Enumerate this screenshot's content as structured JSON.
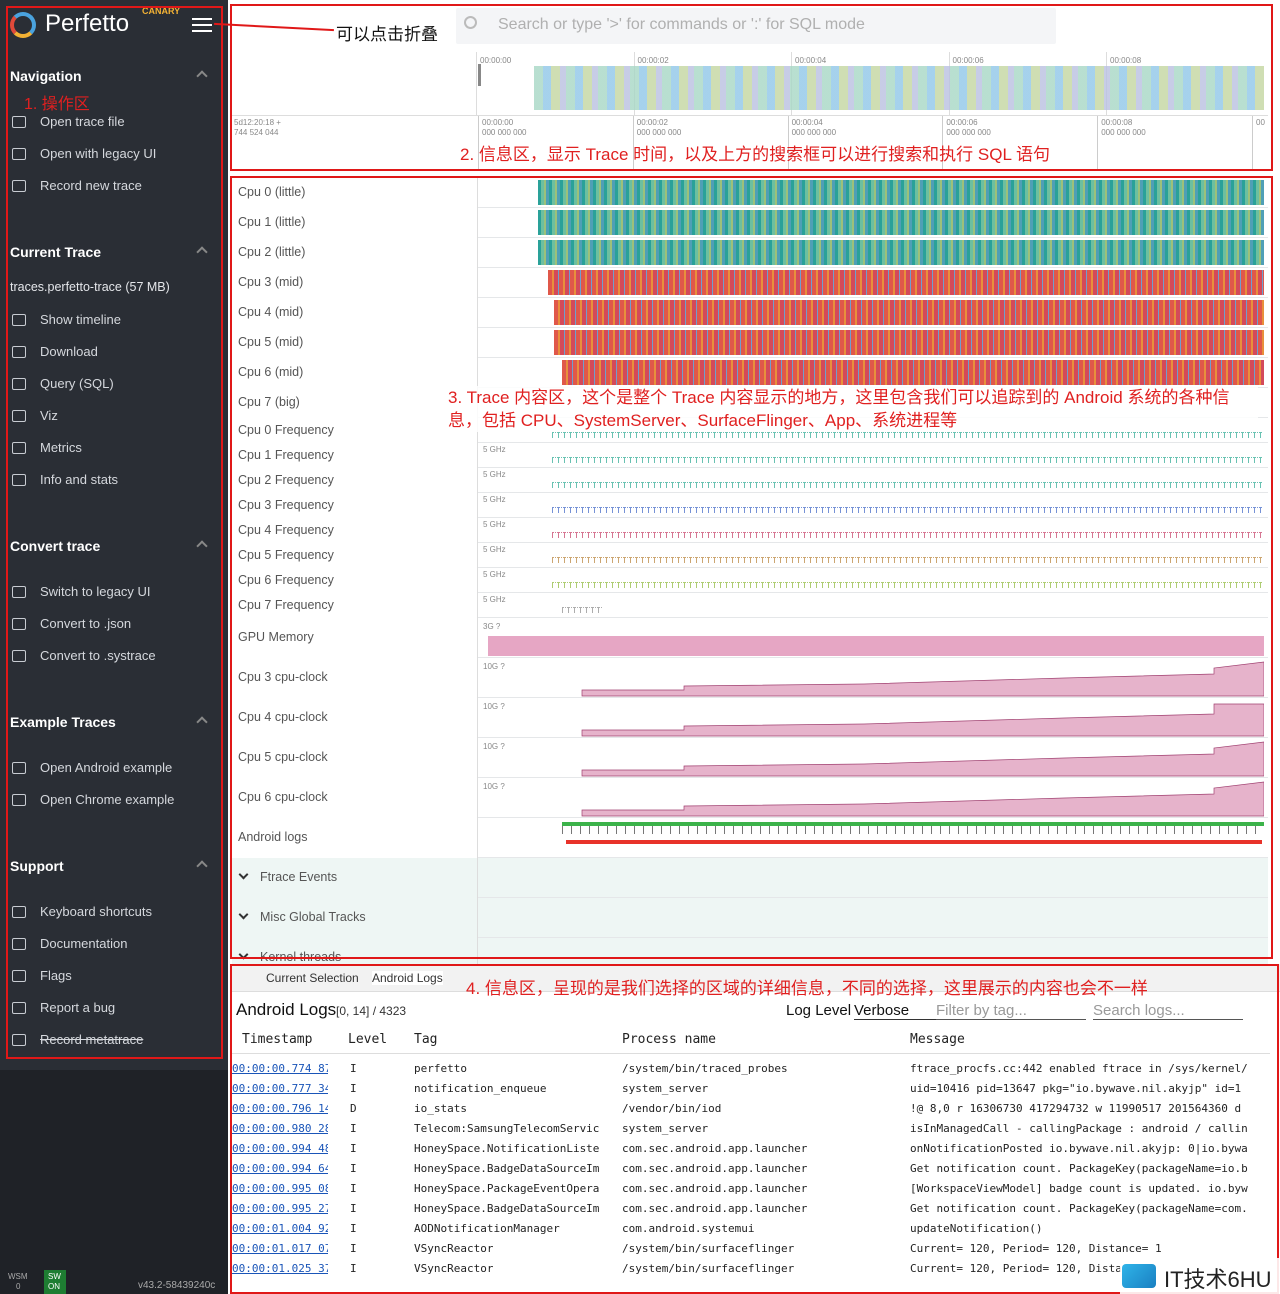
{
  "sidebar": {
    "logo": "Perfetto",
    "badge": "CANARY",
    "annotation": "1. 操作区",
    "sections": [
      {
        "title": "Navigation",
        "items": [
          "Open trace file",
          "Open with legacy UI",
          "Record new trace"
        ]
      },
      {
        "title": "Current Trace",
        "file": "traces.perfetto-trace (57 MB)",
        "items": [
          "Show timeline",
          "Download",
          "Query (SQL)",
          "Viz",
          "Metrics",
          "Info and stats"
        ]
      },
      {
        "title": "Convert trace",
        "items": [
          "Switch to legacy UI",
          "Convert to .json",
          "Convert to .systrace"
        ]
      },
      {
        "title": "Example Traces",
        "items": [
          "Open Android example",
          "Open Chrome example"
        ]
      },
      {
        "title": "Support",
        "items": [
          "Keyboard shortcuts",
          "Documentation",
          "Flags",
          "Report a bug",
          "Record metatrace"
        ]
      }
    ],
    "footer": {
      "wsm": "WSM",
      "wsm_state": "0",
      "sw": "SW",
      "sw_state": "ON",
      "version": "v43.2-58439240c"
    }
  },
  "annotations": {
    "collapse": "可以点击折叠",
    "info": "2. 信息区，显示 Trace 时间，以及上方的搜索框可以进行搜索和执行 SQL 语句",
    "content": "3. Trace 内容区，这个是整个 Trace 内容显示的地方，这里包含我们可以追踪到的 Android 系统的各种信息，包括 CPU、SystemServer、SurfaceFlinger、App、系统进程等",
    "details": "4. 信息区，呈现的是我们选择的区域的详细信息，不同的选择，这里展示的内容也会不一样"
  },
  "search": {
    "placeholder": "Search or type '>' for commands or ':' for SQL mode"
  },
  "timeline": {
    "overview_ticks": [
      "00:00:00",
      "00:00:02",
      "00:00:04",
      "00:00:06",
      "00:00:08"
    ],
    "offset": [
      "5d12:20:18 +",
      "744 524 044"
    ],
    "ruler_ticks": [
      [
        "00:00:00",
        "000 000 000"
      ],
      [
        "00:00:02",
        "000 000 000"
      ],
      [
        "00:00:04",
        "000 000 000"
      ],
      [
        "00:00:06",
        "000 000 000"
      ],
      [
        "00:00:08",
        "000 000 000"
      ],
      [
        "00"
      ]
    ]
  },
  "tracks": {
    "cpu": [
      "Cpu 0 (little)",
      "Cpu 1 (little)",
      "Cpu 2 (little)",
      "Cpu 3 (mid)",
      "Cpu 4 (mid)",
      "Cpu 5 (mid)",
      "Cpu 6 (mid)",
      "Cpu 7 (big)"
    ],
    "freq": [
      {
        "name": "Cpu 0 Frequency"
      },
      {
        "name": "Cpu 1 Frequency",
        "scale": "5 GHz"
      },
      {
        "name": "Cpu 2 Frequency",
        "scale": "5 GHz"
      },
      {
        "name": "Cpu 3 Frequency",
        "scale": "5 GHz"
      },
      {
        "name": "Cpu 4 Frequency",
        "scale": "5 GHz"
      },
      {
        "name": "Cpu 5 Frequency",
        "scale": "5 GHz"
      },
      {
        "name": "Cpu 6 Frequency",
        "scale": "5 GHz"
      },
      {
        "name": "Cpu 7 Frequency",
        "scale": "5 GHz"
      }
    ],
    "counters": [
      {
        "name": "GPU Memory",
        "scale": "3G ?"
      },
      {
        "name": "Cpu 3 cpu-clock",
        "scale": "10G ?"
      },
      {
        "name": "Cpu 4 cpu-clock",
        "scale": "10G ?"
      },
      {
        "name": "Cpu 5 cpu-clock",
        "scale": "10G ?"
      },
      {
        "name": "Cpu 6 cpu-clock",
        "scale": "10G ?"
      }
    ],
    "logs": "Android logs",
    "groups": [
      "Ftrace Events",
      "Misc Global Tracks",
      "Kernel threads"
    ]
  },
  "details": {
    "tabs": [
      "Current Selection",
      "Android Logs"
    ],
    "title": "Android Logs",
    "range": "[0, 14] / 4323",
    "log_level_label": "Log Level",
    "log_level": "Verbose",
    "tag_filter": "Filter by tag...",
    "search": "Search logs...",
    "columns": [
      "Timestamp",
      "Level",
      "Tag",
      "Process name",
      "Message"
    ],
    "rows": [
      [
        "00:00:00.774 87",
        "I",
        "perfetto",
        "/system/bin/traced_probes",
        "ftrace_procfs.cc:442 enabled ftrace in /sys/kernel/"
      ],
      [
        "00:00:00.777 34",
        "I",
        "notification_enqueue",
        "system_server",
        "uid=10416 pid=13647 pkg=\"io.bywave.nil.akyjp\" id=1"
      ],
      [
        "00:00:00.796 14",
        "D",
        "io_stats",
        "/vendor/bin/iod",
        "!@ 8,0 r 16306730 417294732 w 11990517 201564360 d"
      ],
      [
        "00:00:00.980 28",
        "I",
        "Telecom:SamsungTelecomServic",
        "system_server",
        "isInManagedCall - callingPackage : android / callin"
      ],
      [
        "00:00:00.994 48",
        "I",
        "HoneySpace.NotificationListe",
        "com.sec.android.app.launcher",
        "onNotificationPosted io.bywave.nil.akyjp: 0|io.bywa"
      ],
      [
        "00:00:00.994 64",
        "I",
        "HoneySpace.BadgeDataSourceIm",
        "com.sec.android.app.launcher",
        "Get notification count. PackageKey(packageName=io.b"
      ],
      [
        "00:00:00.995 08",
        "I",
        "HoneySpace.PackageEventOpera",
        "com.sec.android.app.launcher",
        "[WorkspaceViewModel] badge count is updated. io.byw"
      ],
      [
        "00:00:00.995 27",
        "I",
        "HoneySpace.BadgeDataSourceIm",
        "com.sec.android.app.launcher",
        "Get notification count. PackageKey(packageName=com."
      ],
      [
        "00:00:01.004 92",
        "I",
        "AODNotificationManager",
        "com.android.systemui",
        "updateNotification()"
      ],
      [
        "00:00:01.017 07",
        "I",
        "VSyncReactor",
        "/system/bin/surfaceflinger",
        "Current= 120, Period= 120, Distance= 1"
      ],
      [
        "00:00:01.025 37",
        "I",
        "VSyncReactor",
        "/system/bin/surfaceflinger",
        "Current= 120, Period= 120, Dista"
      ]
    ]
  },
  "watermark": "IT技术6HU"
}
